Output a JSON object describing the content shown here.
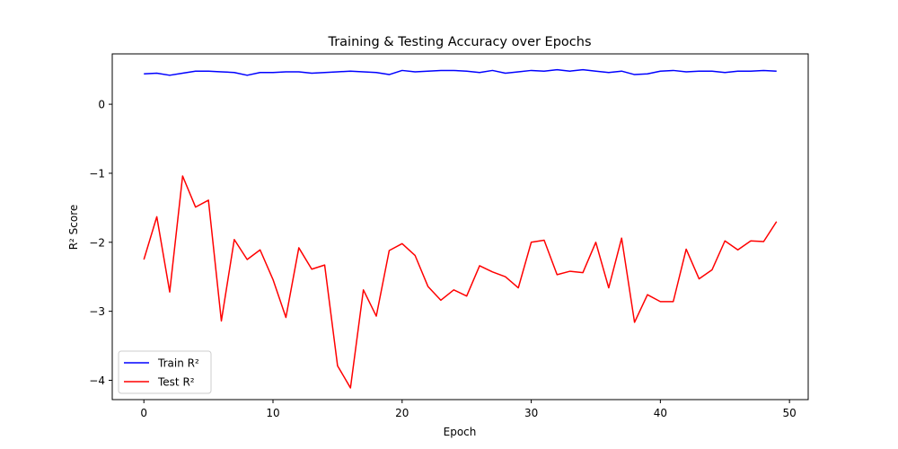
{
  "chart_data": {
    "type": "line",
    "title": "Training & Testing Accuracy over Epochs",
    "xlabel": "Epoch",
    "ylabel": "R² Score",
    "xlim": [
      -2.45,
      51.45
    ],
    "ylim": [
      -4.28,
      0.73
    ],
    "xticks": [
      0,
      10,
      20,
      30,
      40,
      50
    ],
    "yticks": [
      0,
      -1,
      -2,
      -3,
      -4
    ],
    "ytick_labels": [
      "0",
      "−1",
      "−2",
      "−3",
      "−4"
    ],
    "grid": false,
    "legend_position": "lower-left",
    "x": [
      0,
      1,
      2,
      3,
      4,
      5,
      6,
      7,
      8,
      9,
      10,
      11,
      12,
      13,
      14,
      15,
      16,
      17,
      18,
      19,
      20,
      21,
      22,
      23,
      24,
      25,
      26,
      27,
      28,
      29,
      30,
      31,
      32,
      33,
      34,
      35,
      36,
      37,
      38,
      39,
      40,
      41,
      42,
      43,
      44,
      45,
      46,
      47,
      48,
      49
    ],
    "series": [
      {
        "name": "Train R²",
        "color": "#0000ff",
        "values": [
          0.44,
          0.45,
          0.42,
          0.45,
          0.48,
          0.48,
          0.47,
          0.46,
          0.42,
          0.46,
          0.46,
          0.47,
          0.47,
          0.45,
          0.46,
          0.47,
          0.48,
          0.47,
          0.46,
          0.43,
          0.49,
          0.47,
          0.48,
          0.49,
          0.49,
          0.48,
          0.46,
          0.49,
          0.45,
          0.47,
          0.49,
          0.48,
          0.5,
          0.48,
          0.5,
          0.48,
          0.46,
          0.48,
          0.43,
          0.44,
          0.48,
          0.49,
          0.47,
          0.48,
          0.48,
          0.46,
          0.48,
          0.48,
          0.49,
          0.48
        ]
      },
      {
        "name": "Test R²",
        "color": "#ff0000",
        "values": [
          -2.25,
          -1.63,
          -2.72,
          -1.04,
          -1.49,
          -1.39,
          -3.14,
          -1.96,
          -2.25,
          -2.11,
          -2.54,
          -3.09,
          -2.08,
          -2.39,
          -2.33,
          -3.79,
          -4.11,
          -2.69,
          -3.07,
          -2.12,
          -2.02,
          -2.19,
          -2.64,
          -2.84,
          -2.69,
          -2.78,
          -2.34,
          -2.43,
          -2.5,
          -2.66,
          -2.0,
          -1.97,
          -2.47,
          -2.42,
          -2.44,
          -2.0,
          -2.66,
          -1.94,
          -3.16,
          -2.76,
          -2.86,
          -2.86,
          -2.1,
          -2.53,
          -2.4,
          -1.98,
          -2.11,
          -1.98,
          -1.99,
          -1.7
        ]
      }
    ]
  }
}
